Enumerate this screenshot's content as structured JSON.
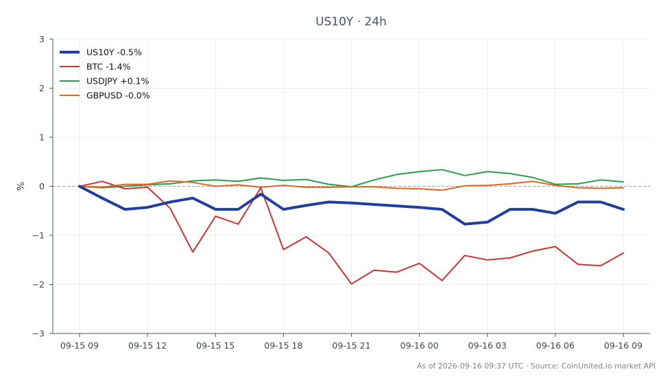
{
  "chart_data": {
    "type": "line",
    "title": "US10Y · 24h",
    "xlabel": "",
    "ylabel": "%",
    "ylim": [
      -3,
      3
    ],
    "yticks": [
      -3,
      -2,
      -1,
      0,
      1,
      2,
      3
    ],
    "ytick_labels": [
      "−3",
      "−2",
      "−1",
      "0",
      "1",
      "2",
      "3"
    ],
    "xlim": [
      0,
      24
    ],
    "xticks": [
      0,
      3,
      6,
      9,
      12,
      15,
      18,
      21,
      24
    ],
    "xtick_labels": [
      "09-15 09",
      "09-15 12",
      "09-15 15",
      "09-15 18",
      "09-15 21",
      "09-16 00",
      "09-16 03",
      "09-16 06",
      "09-16 09"
    ],
    "x": [
      0,
      1,
      2,
      3,
      4,
      5,
      6,
      7,
      8,
      9,
      10,
      11,
      12,
      13,
      14,
      15,
      16,
      17,
      18,
      19,
      20,
      21,
      22,
      23,
      24
    ],
    "grid": true,
    "zero_line": true,
    "legend_position": "top-left",
    "series": [
      {
        "name": "US10Y -0.5%",
        "color": "#1f3fa0",
        "width": 4,
        "values": [
          0.0,
          -0.24,
          -0.47,
          -0.43,
          -0.32,
          -0.24,
          -0.47,
          -0.47,
          -0.16,
          -0.47,
          -0.39,
          -0.32,
          -0.34,
          -0.37,
          -0.4,
          -0.43,
          -0.47,
          -0.77,
          -0.73,
          -0.47,
          -0.47,
          -0.55,
          -0.32,
          -0.32,
          -0.47
        ]
      },
      {
        "name": "BTC -1.4%",
        "color": "#d0322f",
        "width": 2,
        "values": [
          0.0,
          0.1,
          -0.05,
          -0.02,
          -0.45,
          -1.34,
          -0.61,
          -0.77,
          -0.03,
          -1.29,
          -1.03,
          -1.36,
          -1.99,
          -1.71,
          -1.75,
          -1.57,
          -1.92,
          -1.41,
          -1.5,
          -1.46,
          -1.32,
          -1.23,
          -1.59,
          -1.62,
          -1.36
        ]
      },
      {
        "name": "USDJPY +0.1%",
        "color": "#2a9d4b",
        "width": 2,
        "values": [
          0.0,
          -0.03,
          0.0,
          0.03,
          0.05,
          0.11,
          0.13,
          0.1,
          0.17,
          0.12,
          0.14,
          0.04,
          -0.01,
          0.13,
          0.24,
          0.3,
          0.34,
          0.22,
          0.3,
          0.26,
          0.18,
          0.04,
          0.05,
          0.13,
          0.09
        ]
      },
      {
        "name": "GBPUSD -0.0%",
        "color": "#e0661f",
        "width": 2,
        "values": [
          0.0,
          -0.02,
          0.04,
          0.04,
          0.11,
          0.08,
          0.0,
          0.03,
          -0.02,
          0.02,
          -0.02,
          -0.02,
          -0.01,
          -0.01,
          -0.04,
          -0.05,
          -0.08,
          0.01,
          0.02,
          0.05,
          0.1,
          0.02,
          -0.03,
          -0.04,
          -0.03
        ]
      }
    ]
  },
  "footer": {
    "text": "As of 2026-09-16 09:37 UTC · Source: CoinUnited.io market API"
  },
  "colors": {
    "axis": "#4a5563",
    "grid": "#ebedf0",
    "zero_line": "#9aa3b5"
  }
}
